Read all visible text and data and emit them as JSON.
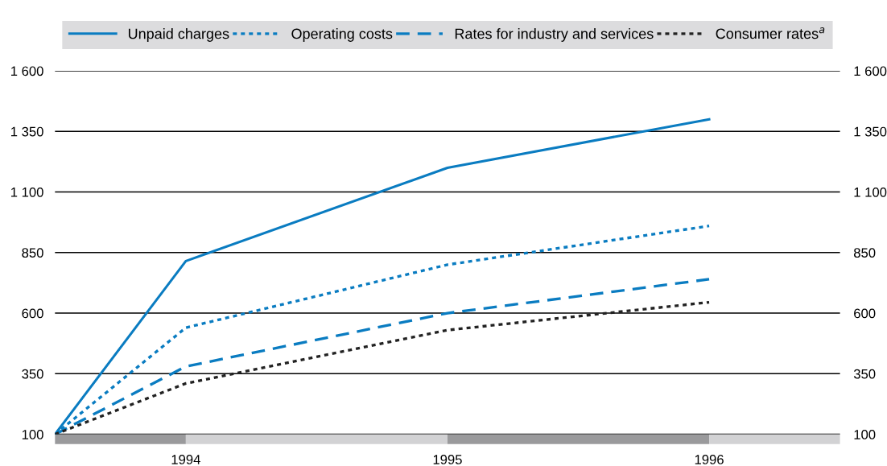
{
  "chart_data": {
    "type": "line",
    "x": [
      1993.5,
      1994,
      1995,
      1996
    ],
    "series": [
      {
        "name": "Unpaid charges",
        "color": "#0a7cc1",
        "line_style": "solid",
        "values": [
          100,
          815,
          1200,
          1400
        ]
      },
      {
        "name": "Operating costs",
        "color": "#0a7cc1",
        "line_style": "dotted",
        "values": [
          100,
          540,
          800,
          960
        ]
      },
      {
        "name": "Rates for industry and services",
        "color": "#0a7cc1",
        "line_style": "dashed",
        "values": [
          100,
          380,
          600,
          740
        ]
      },
      {
        "name": "Consumer rates$^{a}$",
        "color": "#222222",
        "line_style": "dotted",
        "values": [
          100,
          310,
          530,
          645
        ]
      }
    ],
    "xlim": [
      1993.5,
      1996.5
    ],
    "xticks": [
      1994,
      1995,
      1996
    ],
    "ylim": [
      100,
      1600
    ],
    "yticks": [
      {
        "value": 100,
        "label": "100"
      },
      {
        "value": 350,
        "label": "350"
      },
      {
        "value": 600,
        "label": "600"
      },
      {
        "value": 850,
        "label": "850"
      },
      {
        "value": 1100,
        "label": "1 100"
      },
      {
        "value": 1350,
        "label": "1 350"
      },
      {
        "value": 1600,
        "label": "1 600"
      }
    ],
    "y2lim": [
      100,
      1600
    ],
    "y2ticks": [
      {
        "value": 100,
        "label": "100"
      },
      {
        "value": 350,
        "label": "350"
      },
      {
        "value": 600,
        "label": "600"
      },
      {
        "value": 850,
        "label": "850"
      },
      {
        "value": 1100,
        "label": "1 100"
      },
      {
        "value": 1350,
        "label": "1 350"
      },
      {
        "value": 1600,
        "label": "1 600"
      }
    ],
    "grid": "y",
    "legend": "top"
  }
}
